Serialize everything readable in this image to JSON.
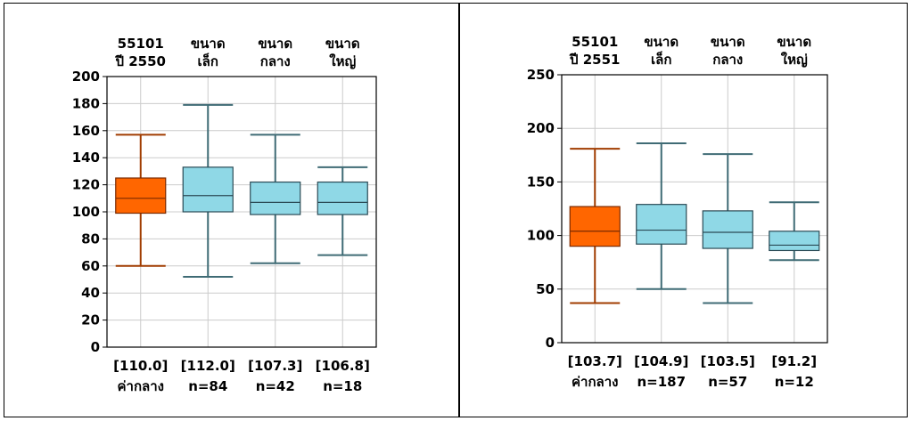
{
  "chart_data": [
    {
      "type": "boxplot",
      "ylim": [
        0,
        200
      ],
      "yticks": [
        0,
        20,
        40,
        60,
        80,
        100,
        120,
        140,
        160,
        180,
        200
      ],
      "grid": true,
      "boxes": [
        {
          "title": [
            "55101",
            "ปี 2550"
          ],
          "median_label": "[110.0]",
          "footer": "ค่ากลาง",
          "whisker_low": 60,
          "q1": 99,
          "median": 110,
          "q3": 125,
          "whisker_high": 157,
          "color": "#ff6600",
          "edge": "#7a2a00",
          "whisker_color": "#a03c00"
        },
        {
          "title": [
            "ขนาด",
            "เล็ก"
          ],
          "median_label": "[112.0]",
          "footer": "n=84",
          "whisker_low": 52,
          "q1": 100,
          "median": 112,
          "q3": 133,
          "whisker_high": 179,
          "color": "#8fd8e6",
          "edge": "#2b4a55",
          "whisker_color": "#3f6b75"
        },
        {
          "title": [
            "ขนาด",
            "กลาง"
          ],
          "median_label": "[107.3]",
          "footer": "n=42",
          "whisker_low": 62,
          "q1": 98,
          "median": 107,
          "q3": 122,
          "whisker_high": 157,
          "color": "#8fd8e6",
          "edge": "#2b4a55",
          "whisker_color": "#3f6b75"
        },
        {
          "title": [
            "ขนาด",
            "ใหญ่"
          ],
          "median_label": "[106.8]",
          "footer": "n=18",
          "whisker_low": 68,
          "q1": 98,
          "median": 107,
          "q3": 122,
          "whisker_high": 133,
          "color": "#8fd8e6",
          "edge": "#2b4a55",
          "whisker_color": "#3f6b75"
        }
      ]
    },
    {
      "type": "boxplot",
      "ylim": [
        0,
        250
      ],
      "yticks": [
        0,
        50,
        100,
        150,
        200,
        250
      ],
      "grid": true,
      "boxes": [
        {
          "title": [
            "55101",
            "ปี 2551"
          ],
          "median_label": "[103.7]",
          "footer": "ค่ากลาง",
          "whisker_low": 37,
          "q1": 90,
          "median": 104,
          "q3": 127,
          "whisker_high": 181,
          "color": "#ff6600",
          "edge": "#7a2a00",
          "whisker_color": "#a03c00"
        },
        {
          "title": [
            "ขนาด",
            "เล็ก"
          ],
          "median_label": "[104.9]",
          "footer": "n=187",
          "whisker_low": 50,
          "q1": 92,
          "median": 105,
          "q3": 129,
          "whisker_high": 186,
          "color": "#8fd8e6",
          "edge": "#2b4a55",
          "whisker_color": "#3f6b75"
        },
        {
          "title": [
            "ขนาด",
            "กลาง"
          ],
          "median_label": "[103.5]",
          "footer": "n=57",
          "whisker_low": 37,
          "q1": 88,
          "median": 103,
          "q3": 123,
          "whisker_high": 176,
          "color": "#8fd8e6",
          "edge": "#2b4a55",
          "whisker_color": "#3f6b75"
        },
        {
          "title": [
            "ขนาด",
            "ใหญ่"
          ],
          "median_label": "[91.2]",
          "footer": "n=12",
          "whisker_low": 77,
          "q1": 86,
          "median": 91,
          "q3": 104,
          "whisker_high": 131,
          "color": "#8fd8e6",
          "edge": "#2b4a55",
          "whisker_color": "#3f6b75"
        }
      ]
    }
  ]
}
